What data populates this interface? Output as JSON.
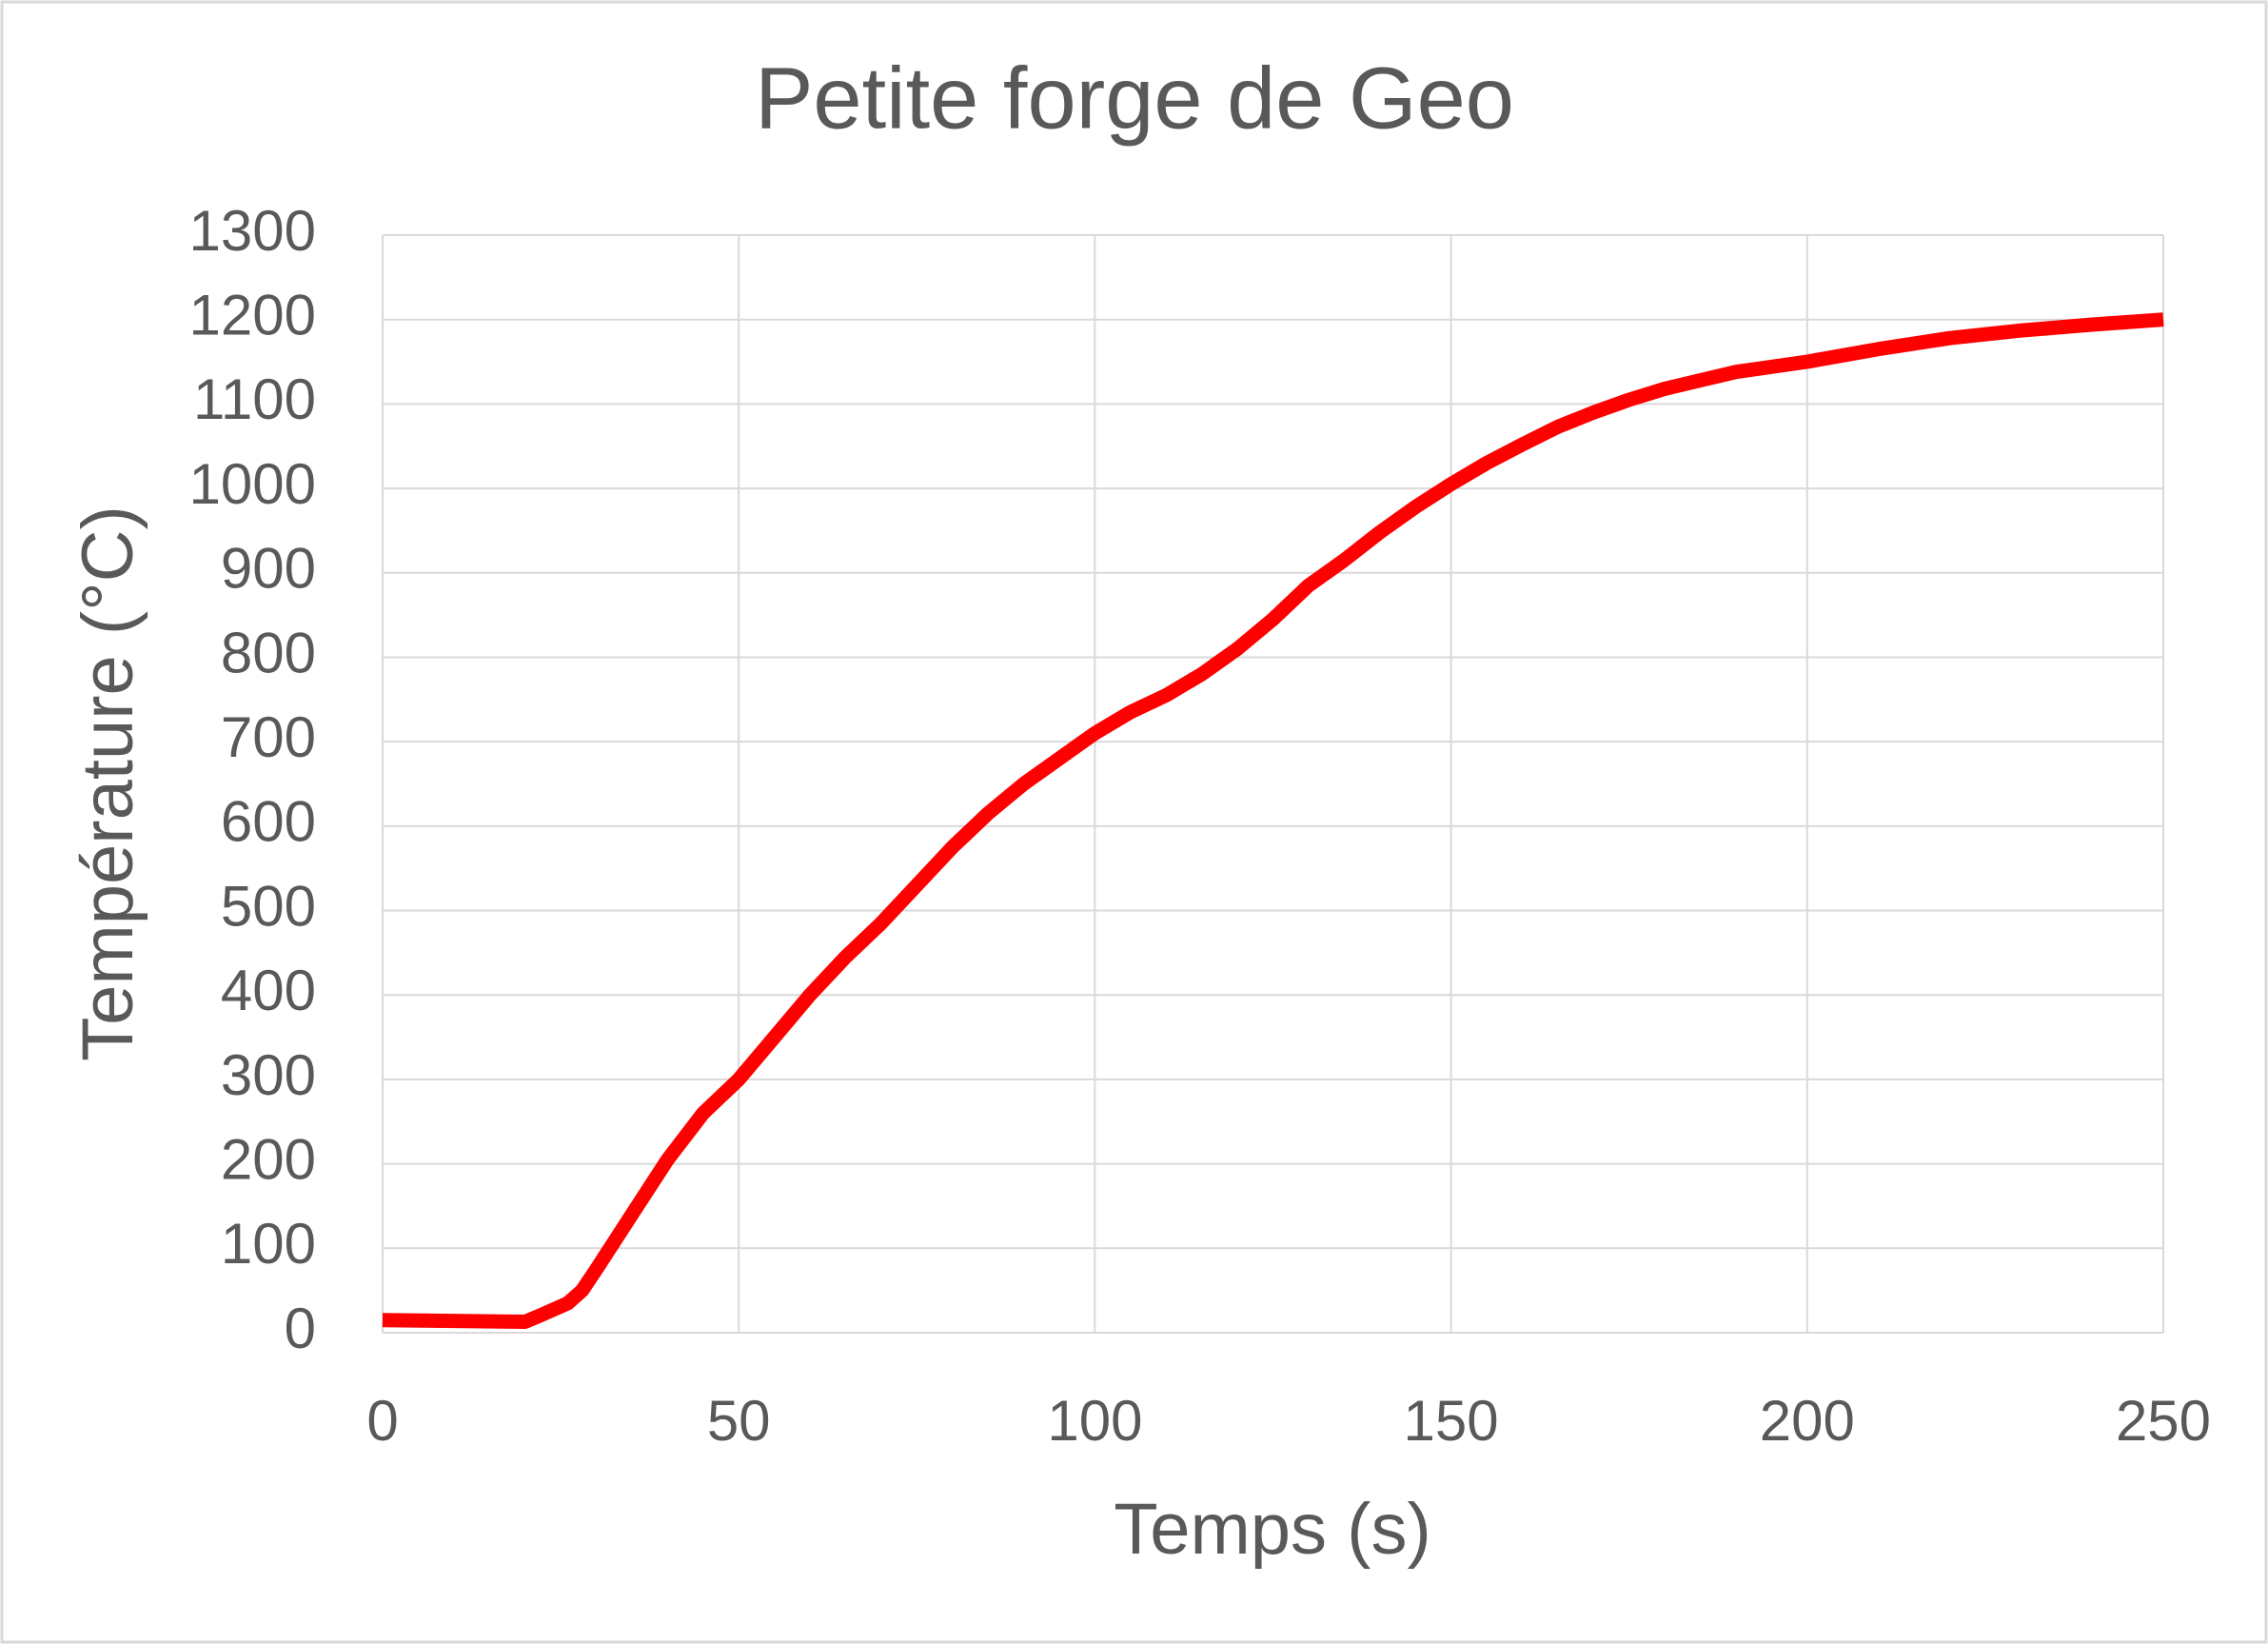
{
  "chart_data": {
    "type": "line",
    "title": "Petite forge de Geo",
    "x_label": "Temps (s)",
    "y_label": "Température (°C)",
    "series": [
      {
        "name": "Température",
        "color": "#ff0000",
        "x": [
          0,
          10,
          20,
          22,
          26,
          28,
          30,
          35,
          40,
          45,
          50,
          55,
          60,
          65,
          70,
          75,
          80,
          85,
          90,
          95,
          100,
          105,
          110,
          115,
          120,
          125,
          130,
          135,
          140,
          145,
          150,
          155,
          160,
          165,
          170,
          175,
          180,
          190,
          200,
          210,
          220,
          230,
          240,
          250
        ],
        "values": [
          15,
          14,
          13,
          20,
          35,
          50,
          75,
          140,
          205,
          260,
          300,
          350,
          400,
          445,
          485,
          530,
          575,
          615,
          650,
          680,
          710,
          735,
          755,
          780,
          810,
          845,
          885,
          915,
          948,
          978,
          1005,
          1030,
          1052,
          1073,
          1090,
          1105,
          1118,
          1138,
          1150,
          1165,
          1178,
          1187,
          1194,
          1200
        ]
      }
    ],
    "xlim": [
      0,
      250
    ],
    "xticks": [
      0,
      50,
      100,
      150,
      200,
      250
    ],
    "ylim": [
      0,
      1300
    ],
    "yticks": [
      0,
      100,
      200,
      300,
      400,
      500,
      600,
      700,
      800,
      900,
      1000,
      1100,
      1200,
      1300
    ],
    "grid": true,
    "legend": false
  }
}
